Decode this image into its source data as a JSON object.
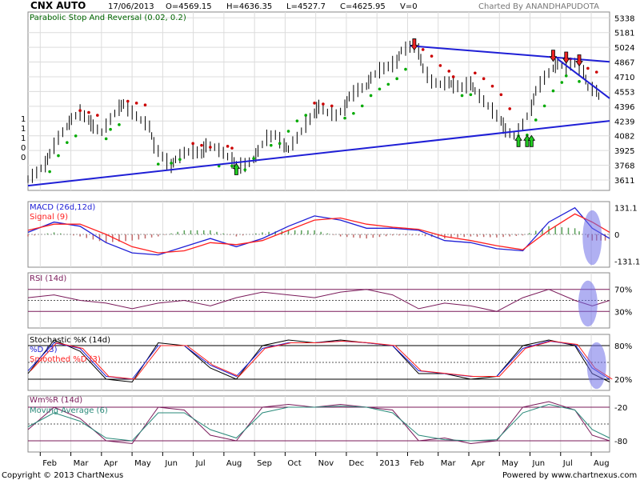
{
  "chart_data": {
    "type": "line",
    "header": {
      "symbol": "CNX AUTO",
      "date": "17/06/2013",
      "open": "O=4569.15",
      "high": "H=4636.35",
      "low": "L=4527.7",
      "close": "C=4625.95",
      "volume": "V=0",
      "charted_by": "Charted By ANANDHAPUDOTA"
    },
    "x_ticks": [
      "Feb",
      "Mar",
      "Apr",
      "May",
      "Jun",
      "Jul",
      "Aug",
      "Sep",
      "Oct",
      "Nov",
      "Dec",
      "2013",
      "Feb",
      "Mar",
      "Apr",
      "May",
      "Jun",
      "Jul",
      "Aug"
    ],
    "price_panel": {
      "indicator_label": "Parabolic Stop And Reversal (0.02, 0.2)",
      "y_ticks": [
        "5338",
        "5181",
        "5024",
        "4867",
        "4710",
        "4553",
        "4396",
        "4239",
        "4082",
        "3925",
        "3768",
        "3611"
      ],
      "ylim": [
        3500,
        5400
      ],
      "left_ticks": [
        "1",
        "1",
        "1",
        "0",
        "0"
      ],
      "price_series": [
        [
          0,
          3620
        ],
        [
          2,
          3690
        ],
        [
          4,
          3780
        ],
        [
          5,
          3890
        ],
        [
          7,
          4060
        ],
        [
          9,
          4180
        ],
        [
          10,
          4260
        ],
        [
          12,
          4330
        ],
        [
          14,
          4250
        ],
        [
          15,
          4180
        ],
        [
          17,
          4120
        ],
        [
          19,
          4260
        ],
        [
          21,
          4380
        ],
        [
          22,
          4420
        ],
        [
          24,
          4330
        ],
        [
          26,
          4250
        ],
        [
          28,
          4180
        ],
        [
          29,
          3980
        ],
        [
          31,
          3860
        ],
        [
          33,
          3760
        ],
        [
          34,
          3830
        ],
        [
          36,
          3900
        ],
        [
          38,
          3920
        ],
        [
          40,
          3890
        ],
        [
          41,
          3980
        ],
        [
          43,
          3960
        ],
        [
          45,
          3900
        ],
        [
          47,
          3820
        ],
        [
          48,
          3760
        ],
        [
          50,
          3770
        ],
        [
          52,
          3830
        ],
        [
          53,
          3920
        ],
        [
          55,
          4060
        ],
        [
          57,
          4090
        ],
        [
          59,
          3980
        ],
        [
          60,
          3940
        ],
        [
          62,
          4060
        ],
        [
          64,
          4200
        ],
        [
          66,
          4320
        ],
        [
          67,
          4390
        ],
        [
          69,
          4330
        ],
        [
          71,
          4300
        ],
        [
          73,
          4380
        ],
        [
          74,
          4500
        ],
        [
          76,
          4570
        ],
        [
          78,
          4610
        ],
        [
          79,
          4700
        ],
        [
          81,
          4780
        ],
        [
          83,
          4820
        ],
        [
          85,
          4870
        ],
        [
          86,
          4990
        ],
        [
          88,
          5030
        ],
        [
          90,
          4980
        ],
        [
          91,
          4800
        ],
        [
          93,
          4660
        ],
        [
          95,
          4630
        ],
        [
          97,
          4650
        ],
        [
          98,
          4620
        ],
        [
          100,
          4600
        ],
        [
          102,
          4640
        ],
        [
          103,
          4560
        ],
        [
          105,
          4450
        ],
        [
          107,
          4350
        ],
        [
          109,
          4240
        ],
        [
          110,
          4140
        ],
        [
          112,
          4080
        ],
        [
          114,
          4200
        ],
        [
          116,
          4380
        ],
        [
          117,
          4560
        ],
        [
          119,
          4700
        ],
        [
          121,
          4800
        ],
        [
          122,
          4850
        ],
        [
          124,
          4820
        ],
        [
          126,
          4860
        ],
        [
          128,
          4760
        ],
        [
          129,
          4600
        ],
        [
          131,
          4560
        ],
        [
          132,
          4450
        ]
      ],
      "sar_dots_green": [
        [
          5,
          3700
        ],
        [
          7,
          3870
        ],
        [
          9,
          4010
        ],
        [
          11,
          4080
        ],
        [
          18,
          4050
        ],
        [
          19,
          4150
        ],
        [
          21,
          4200
        ],
        [
          30,
          3780
        ],
        [
          33,
          3790
        ],
        [
          35,
          3830
        ],
        [
          44,
          3760
        ],
        [
          47,
          3760
        ],
        [
          50,
          3720
        ],
        [
          52,
          3840
        ],
        [
          56,
          3980
        ],
        [
          58,
          4000
        ],
        [
          60,
          4130
        ],
        [
          62,
          4240
        ],
        [
          64,
          4300
        ],
        [
          73,
          4270
        ],
        [
          75,
          4320
        ],
        [
          77,
          4400
        ],
        [
          79,
          4510
        ],
        [
          81,
          4580
        ],
        [
          83,
          4630
        ],
        [
          85,
          4690
        ],
        [
          87,
          4790
        ],
        [
          100,
          4510
        ],
        [
          102,
          4520
        ],
        [
          113,
          4080
        ],
        [
          115,
          4090
        ],
        [
          117,
          4250
        ],
        [
          119,
          4400
        ],
        [
          121,
          4560
        ],
        [
          123,
          4650
        ],
        [
          124,
          4720
        ],
        [
          127,
          4660
        ]
      ],
      "sar_dots_red": [
        [
          12,
          4350
        ],
        [
          14,
          4330
        ],
        [
          16,
          4300
        ],
        [
          23,
          4450
        ],
        [
          25,
          4430
        ],
        [
          27,
          4410
        ],
        [
          38,
          4000
        ],
        [
          40,
          3980
        ],
        [
          42,
          3960
        ],
        [
          46,
          3970
        ],
        [
          47,
          3950
        ],
        [
          66,
          4430
        ],
        [
          68,
          4420
        ],
        [
          70,
          4400
        ],
        [
          89,
          5030
        ],
        [
          91,
          5000
        ],
        [
          93,
          4930
        ],
        [
          95,
          4830
        ],
        [
          97,
          4770
        ],
        [
          98,
          4710
        ],
        [
          103,
          4750
        ],
        [
          105,
          4690
        ],
        [
          107,
          4610
        ],
        [
          109,
          4520
        ],
        [
          111,
          4370
        ],
        [
          125,
          4900
        ],
        [
          127,
          4880
        ],
        [
          129,
          4800
        ],
        [
          131,
          4760
        ]
      ],
      "trendlines": [
        {
          "from": [
            0,
            3550
          ],
          "to": [
            134,
            4240
          ]
        },
        {
          "from": [
            88,
            5040
          ],
          "to": [
            134,
            4870
          ]
        },
        {
          "from": [
            122,
            4900
          ],
          "to": [
            134,
            4480
          ]
        }
      ],
      "arrows_up": [
        [
          48,
          3700
        ],
        [
          113,
          4000
        ],
        [
          115,
          4000
        ],
        [
          116,
          4000
        ]
      ],
      "arrows_down": [
        [
          89,
          5080
        ],
        [
          121,
          4960
        ],
        [
          124,
          4940
        ],
        [
          127,
          4910
        ]
      ]
    },
    "macd_panel": {
      "label": "MACD (26d,12d)",
      "signal_label": "Signal (9)",
      "y_ticks": [
        "131.1",
        "0",
        "-131.1"
      ],
      "ylim": [
        -160,
        160
      ],
      "macd": [
        [
          0,
          10
        ],
        [
          6,
          60
        ],
        [
          12,
          40
        ],
        [
          18,
          -40
        ],
        [
          24,
          -90
        ],
        [
          30,
          -100
        ],
        [
          36,
          -60
        ],
        [
          42,
          -20
        ],
        [
          48,
          -60
        ],
        [
          54,
          -20
        ],
        [
          60,
          40
        ],
        [
          66,
          90
        ],
        [
          72,
          70
        ],
        [
          78,
          30
        ],
        [
          84,
          30
        ],
        [
          90,
          20
        ],
        [
          96,
          -30
        ],
        [
          102,
          -40
        ],
        [
          108,
          -70
        ],
        [
          114,
          -80
        ],
        [
          120,
          60
        ],
        [
          126,
          130
        ],
        [
          130,
          30
        ],
        [
          134,
          -20
        ]
      ],
      "signal": [
        [
          0,
          20
        ],
        [
          6,
          50
        ],
        [
          12,
          50
        ],
        [
          18,
          0
        ],
        [
          24,
          -60
        ],
        [
          30,
          -90
        ],
        [
          36,
          -80
        ],
        [
          42,
          -40
        ],
        [
          48,
          -50
        ],
        [
          54,
          -30
        ],
        [
          60,
          20
        ],
        [
          66,
          70
        ],
        [
          72,
          80
        ],
        [
          78,
          50
        ],
        [
          84,
          35
        ],
        [
          90,
          25
        ],
        [
          96,
          -10
        ],
        [
          102,
          -30
        ],
        [
          108,
          -55
        ],
        [
          114,
          -75
        ],
        [
          120,
          20
        ],
        [
          126,
          100
        ],
        [
          130,
          60
        ],
        [
          134,
          10
        ]
      ]
    },
    "rsi_panel": {
      "label": "RSI (14d)",
      "y_ticks": [
        "70%",
        "30%"
      ],
      "ylim": [
        0,
        100
      ],
      "rsi": [
        [
          0,
          55
        ],
        [
          6,
          60
        ],
        [
          12,
          50
        ],
        [
          18,
          45
        ],
        [
          24,
          35
        ],
        [
          30,
          45
        ],
        [
          36,
          50
        ],
        [
          42,
          40
        ],
        [
          48,
          55
        ],
        [
          54,
          65
        ],
        [
          60,
          60
        ],
        [
          66,
          55
        ],
        [
          72,
          65
        ],
        [
          78,
          70
        ],
        [
          84,
          60
        ],
        [
          90,
          35
        ],
        [
          96,
          45
        ],
        [
          102,
          40
        ],
        [
          108,
          30
        ],
        [
          114,
          55
        ],
        [
          120,
          70
        ],
        [
          126,
          50
        ],
        [
          130,
          40
        ],
        [
          134,
          50
        ]
      ]
    },
    "stoch_panel": {
      "label": "Stochastic %K (14d)",
      "d_label": "%D (3)",
      "smoothed_label": "Smoothed %D (3)",
      "y_ticks": [
        "80%",
        "20%"
      ],
      "ylim": [
        0,
        100
      ],
      "k": [
        [
          0,
          30
        ],
        [
          6,
          90
        ],
        [
          12,
          70
        ],
        [
          18,
          20
        ],
        [
          24,
          15
        ],
        [
          30,
          85
        ],
        [
          36,
          80
        ],
        [
          42,
          40
        ],
        [
          48,
          20
        ],
        [
          54,
          80
        ],
        [
          60,
          90
        ],
        [
          66,
          85
        ],
        [
          72,
          90
        ],
        [
          78,
          85
        ],
        [
          84,
          80
        ],
        [
          90,
          30
        ],
        [
          96,
          30
        ],
        [
          102,
          20
        ],
        [
          108,
          25
        ],
        [
          114,
          80
        ],
        [
          120,
          90
        ],
        [
          126,
          80
        ],
        [
          130,
          30
        ],
        [
          134,
          15
        ]
      ],
      "d": [
        [
          0,
          35
        ],
        [
          6,
          85
        ],
        [
          12,
          75
        ],
        [
          18,
          25
        ],
        [
          24,
          20
        ],
        [
          30,
          80
        ],
        [
          36,
          80
        ],
        [
          42,
          45
        ],
        [
          48,
          25
        ],
        [
          54,
          75
        ],
        [
          60,
          85
        ],
        [
          66,
          85
        ],
        [
          72,
          88
        ],
        [
          78,
          85
        ],
        [
          84,
          80
        ],
        [
          90,
          35
        ],
        [
          96,
          30
        ],
        [
          102,
          25
        ],
        [
          108,
          25
        ],
        [
          114,
          75
        ],
        [
          120,
          88
        ],
        [
          126,
          82
        ],
        [
          130,
          40
        ],
        [
          134,
          20
        ]
      ]
    },
    "wmr_panel": {
      "label": "Wm%R (14d)",
      "ma_label": "Moving Average (6)",
      "y_ticks": [
        "-20",
        "-80"
      ],
      "ylim": [
        -100,
        0
      ],
      "wmr": [
        [
          0,
          -60
        ],
        [
          6,
          -20
        ],
        [
          12,
          -40
        ],
        [
          18,
          -80
        ],
        [
          24,
          -85
        ],
        [
          30,
          -20
        ],
        [
          36,
          -25
        ],
        [
          42,
          -70
        ],
        [
          48,
          -80
        ],
        [
          54,
          -20
        ],
        [
          60,
          -15
        ],
        [
          66,
          -20
        ],
        [
          72,
          -15
        ],
        [
          78,
          -20
        ],
        [
          84,
          -25
        ],
        [
          90,
          -80
        ],
        [
          96,
          -75
        ],
        [
          102,
          -85
        ],
        [
          108,
          -80
        ],
        [
          114,
          -20
        ],
        [
          120,
          -10
        ],
        [
          126,
          -25
        ],
        [
          130,
          -70
        ],
        [
          134,
          -80
        ]
      ],
      "ma": [
        [
          0,
          -55
        ],
        [
          6,
          -30
        ],
        [
          12,
          -45
        ],
        [
          18,
          -75
        ],
        [
          24,
          -80
        ],
        [
          30,
          -30
        ],
        [
          36,
          -30
        ],
        [
          42,
          -60
        ],
        [
          48,
          -75
        ],
        [
          54,
          -30
        ],
        [
          60,
          -20
        ],
        [
          66,
          -20
        ],
        [
          72,
          -18
        ],
        [
          78,
          -20
        ],
        [
          84,
          -30
        ],
        [
          90,
          -70
        ],
        [
          96,
          -78
        ],
        [
          102,
          -80
        ],
        [
          108,
          -78
        ],
        [
          114,
          -30
        ],
        [
          120,
          -15
        ],
        [
          126,
          -25
        ],
        [
          130,
          -60
        ],
        [
          134,
          -75
        ]
      ]
    },
    "highlights": [
      {
        "panel": "macd",
        "x": 130
      },
      {
        "panel": "rsi",
        "x": 129
      },
      {
        "panel": "stoch",
        "x": 131
      }
    ],
    "colors": {
      "price": "#000000",
      "sar_green": "#00aa00",
      "sar_red": "#cc0000",
      "trendline": "#1f1fd6",
      "macd": "#1f1fd6",
      "signal": "#ff2020",
      "rsi": "#7a1a5a",
      "stoch_k": "#000000",
      "stoch_d": "#1f1fd6",
      "stoch_smoothed": "#ff2020",
      "wmr": "#7a1a5a",
      "wmr_ma": "#2a8a7a",
      "highlight": "#6f6fe8",
      "hline": "#7a1a5a"
    },
    "footer": {
      "copyright": "Copyright © 2013 ChartNexus",
      "powered": "Powered by www.chartnexus.com"
    }
  }
}
